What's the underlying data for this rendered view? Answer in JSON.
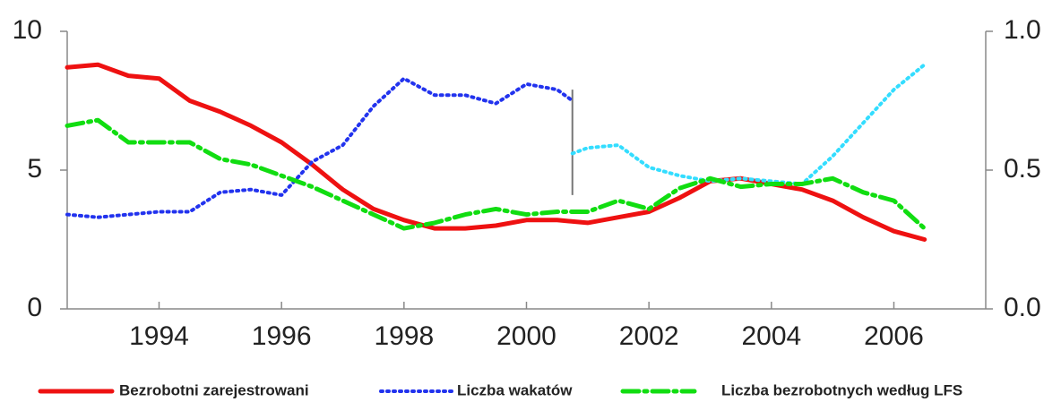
{
  "chart_data": {
    "type": "line",
    "xlim": [
      1993,
      2008
    ],
    "xticks": [
      {
        "value": 1994.5,
        "label": "1994"
      },
      {
        "value": 1996.5,
        "label": "1996"
      },
      {
        "value": 1998.5,
        "label": "1998"
      },
      {
        "value": 2000.5,
        "label": "2000"
      },
      {
        "value": 2002.5,
        "label": "2002"
      },
      {
        "value": 2004.5,
        "label": "2004"
      },
      {
        "value": 2006.5,
        "label": "2006"
      }
    ],
    "ylim": [
      0,
      10
    ],
    "yticks": [
      0,
      5,
      10
    ],
    "y2lim": [
      0,
      1
    ],
    "y2ticks": [
      {
        "value": 0,
        "label": "0.0"
      },
      {
        "value": 0.5,
        "label": "0.5"
      },
      {
        "value": 1,
        "label": "1.0"
      }
    ],
    "break_line": {
      "x": 2001.25,
      "ylim": [
        4.1,
        7.9
      ]
    },
    "series": [
      {
        "name": "Bezrobotni zarejestrowani",
        "color": "#ee1111",
        "style": "solid",
        "x": [
          1993,
          1993.5,
          1994,
          1994.5,
          1995,
          1995.5,
          1996,
          1996.5,
          1997,
          1997.5,
          1998,
          1998.5,
          1999,
          1999.5,
          2000,
          2000.5,
          2001,
          2001.5,
          2002,
          2002.5,
          2003,
          2003.5,
          2004,
          2004.5,
          2005,
          2005.5,
          2006,
          2006.5,
          2007
        ],
        "values": [
          8.7,
          8.8,
          8.4,
          8.3,
          7.5,
          7.1,
          6.6,
          6.0,
          5.2,
          4.3,
          3.6,
          3.2,
          2.9,
          2.9,
          3.0,
          3.2,
          3.2,
          3.1,
          3.3,
          3.5,
          4.0,
          4.6,
          4.7,
          4.5,
          4.3,
          3.9,
          3.3,
          2.8,
          2.5
        ]
      },
      {
        "name": "Liczba wakatów",
        "color": "#2233ee",
        "style": "dotted",
        "axis": "y2",
        "x": [
          1993,
          1993.5,
          1994,
          1994.5,
          1995,
          1995.5,
          1996,
          1996.5,
          1997,
          1997.5,
          1998,
          1998.5,
          1999,
          1999.5,
          2000,
          2000.5,
          2001,
          2001.25
        ],
        "values": [
          0.34,
          0.33,
          0.34,
          0.35,
          0.35,
          0.42,
          0.43,
          0.41,
          0.53,
          0.59,
          0.73,
          0.83,
          0.77,
          0.77,
          0.74,
          0.81,
          0.79,
          0.75
        ]
      },
      {
        "color": "#33ddff",
        "style": "dotted",
        "axis": "y2",
        "x": [
          2001.25,
          2001.5,
          2002,
          2002.5,
          2003,
          2003.5,
          2004,
          2004.5,
          2005,
          2005.5,
          2006,
          2006.5,
          2007
        ],
        "values": [
          0.56,
          0.58,
          0.59,
          0.51,
          0.48,
          0.46,
          0.47,
          0.46,
          0.45,
          0.55,
          0.67,
          0.79,
          0.88
        ]
      },
      {
        "name": "Liczba bezrobotnych  według LFS",
        "color": "#11dd11",
        "style": "dashdot",
        "x": [
          1993,
          1993.5,
          1994,
          1994.5,
          1995,
          1995.5,
          1996,
          1996.5,
          1997,
          1997.5,
          1998,
          1998.5,
          1999,
          1999.5,
          2000,
          2000.5,
          2001,
          2001.5,
          2002,
          2002.5,
          2003,
          2003.5,
          2004,
          2004.5,
          2005,
          2005.5,
          2006,
          2006.5,
          2007
        ],
        "values": [
          6.6,
          6.8,
          6.0,
          6.0,
          6.0,
          5.4,
          5.2,
          4.8,
          4.4,
          3.9,
          3.4,
          2.9,
          3.1,
          3.4,
          3.6,
          3.4,
          3.5,
          3.5,
          3.9,
          3.6,
          4.35,
          4.7,
          4.4,
          4.5,
          4.5,
          4.7,
          4.2,
          3.9,
          2.9
        ]
      }
    ]
  }
}
